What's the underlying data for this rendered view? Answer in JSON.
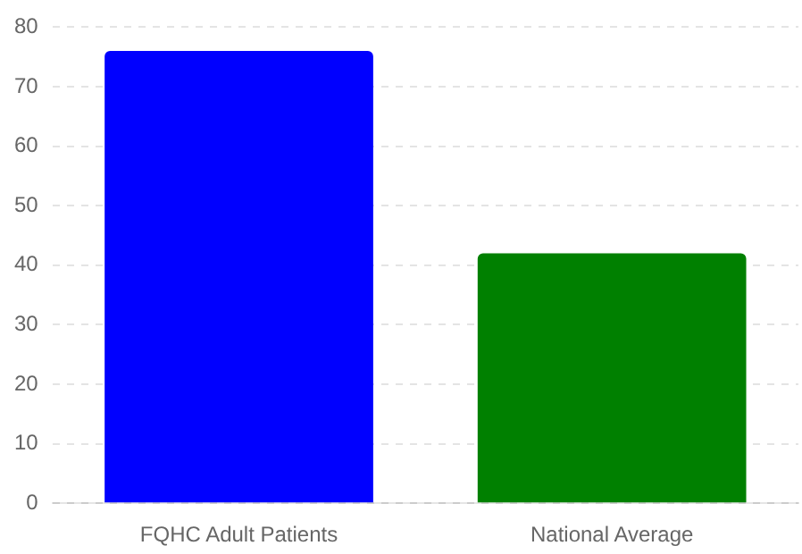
{
  "chart_data": {
    "type": "bar",
    "categories": [
      "FQHC Adult Patients",
      "National Average"
    ],
    "values": [
      76,
      42
    ],
    "colors": [
      "#0000ff",
      "#008000"
    ],
    "ylim": [
      0,
      80
    ],
    "yticks": [
      0,
      10,
      20,
      30,
      40,
      50,
      60,
      70,
      80
    ],
    "grid": "y",
    "legend": false
  }
}
